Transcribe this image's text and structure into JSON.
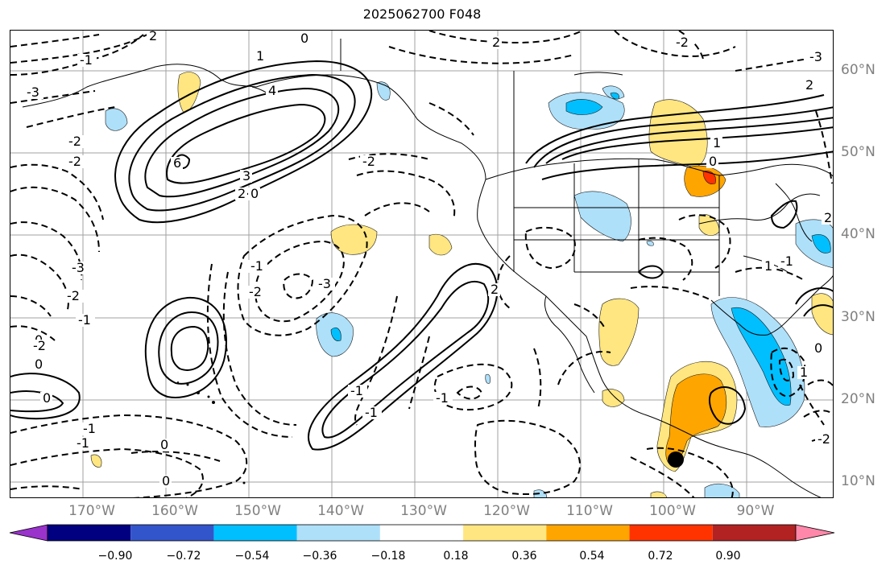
{
  "title": "2025062700 F048",
  "lon_labels": [
    "170°W",
    "160°W",
    "150°W",
    "140°W",
    "130°W",
    "120°W",
    "110°W",
    "100°W",
    "90°W"
  ],
  "lat_labels": [
    "60°N",
    "50°N",
    "40°N",
    "30°N",
    "20°N",
    "10°N"
  ],
  "colorbar": {
    "colors": [
      "#9933cc",
      "#000080",
      "#3355cc",
      "#00bfff",
      "#aee0fa",
      "#ffffff",
      "#ffe680",
      "#ffa500",
      "#ff3300",
      "#b22222",
      "#ff88aa"
    ],
    "labels": [
      "−0.90",
      "−0.72",
      "−0.54",
      "−0.36",
      "−0.18",
      "0.18",
      "0.36",
      "0.54",
      "0.72",
      "0.90"
    ]
  },
  "contour_labels": [
    "-3",
    "-2",
    "-2",
    "-1",
    "-1",
    "0",
    "0",
    "0",
    "1",
    "-1",
    "-2",
    "-3",
    "2",
    "4",
    "6",
    "3",
    "2",
    "0",
    "-2",
    "-1",
    "2",
    "-1",
    "-2",
    "-3",
    "1",
    "0",
    "1",
    "-1",
    "2",
    "-3",
    "-2",
    "0",
    "-1",
    "0",
    "-2",
    "0",
    "-1",
    "-1",
    "1",
    "0",
    "2",
    "-2",
    "2"
  ],
  "marker": "black-dot"
}
